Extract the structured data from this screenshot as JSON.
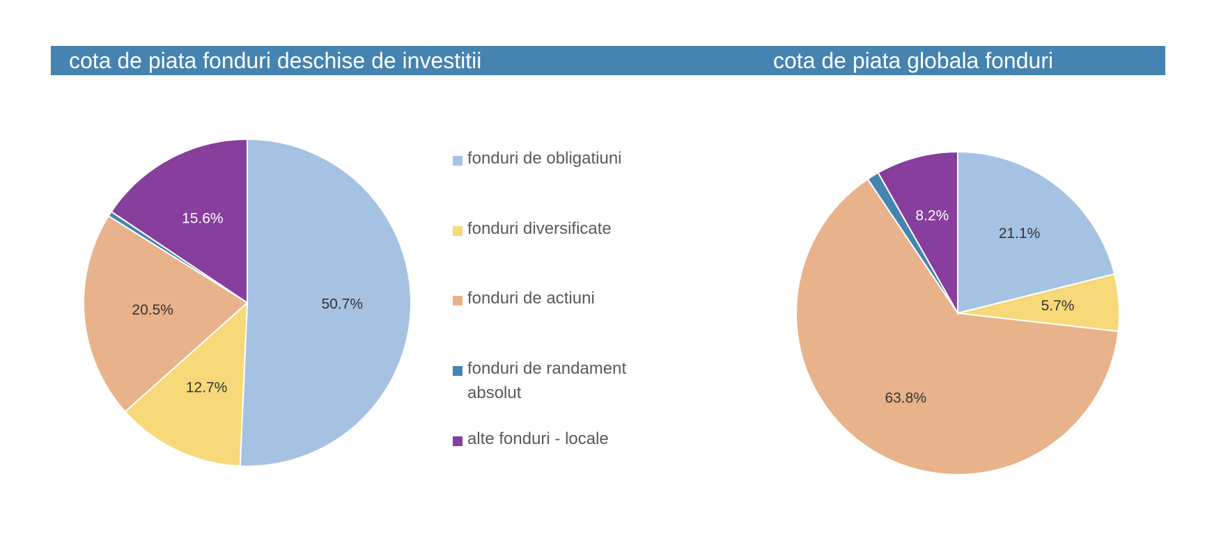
{
  "header": {
    "title_left": "cota de piata fonduri deschise de investitii",
    "title_right": "cota de piata globala fonduri",
    "color": "#4583b1"
  },
  "legend": [
    {
      "label": "fonduri de obligatiuni",
      "color": "#a6c2e3"
    },
    {
      "label": "fonduri diversificate",
      "color": "#f7d979"
    },
    {
      "label": "fonduri de actiuni",
      "color": "#e8b28a"
    },
    {
      "label": "fonduri de randament absolut",
      "color": "#4583b1"
    },
    {
      "label": "alte fonduri - locale",
      "color": "#873e9c"
    }
  ],
  "chart_data": [
    {
      "type": "pie",
      "title": "cota de piata fonduri deschise de investitii",
      "categories": [
        "fonduri de obligatiuni",
        "fonduri diversificate",
        "fonduri de actiuni",
        "fonduri de randament absolut",
        "alte fonduri - locale"
      ],
      "values": [
        50.7,
        12.7,
        20.5,
        0.5,
        15.6
      ],
      "data_labels": [
        "50.7%",
        "12.7%",
        "20.5%",
        "",
        "15.6%"
      ],
      "colors": [
        "#a6c2e3",
        "#f7d979",
        "#e8b28a",
        "#4583b1",
        "#873e9c"
      ],
      "label_colors": [
        "#333333",
        "#333333",
        "#333333",
        "#ffffff",
        "#ffffff"
      ],
      "legend_position": "right"
    },
    {
      "type": "pie",
      "title": "cota de piata globala fonduri",
      "categories": [
        "fonduri de obligatiuni",
        "fonduri diversificate",
        "fonduri de actiuni",
        "fonduri de randament absolut",
        "alte fonduri - locale"
      ],
      "values": [
        21.1,
        5.7,
        63.8,
        1.2,
        8.2
      ],
      "data_labels": [
        "21.1%",
        "5.7%",
        "63.8%",
        "",
        "8.2%"
      ],
      "colors": [
        "#a6c2e3",
        "#f7d979",
        "#e8b28a",
        "#4583b1",
        "#873e9c"
      ],
      "label_colors": [
        "#333333",
        "#333333",
        "#333333",
        "#ffffff",
        "#ffffff"
      ],
      "legend_position": "none"
    }
  ]
}
